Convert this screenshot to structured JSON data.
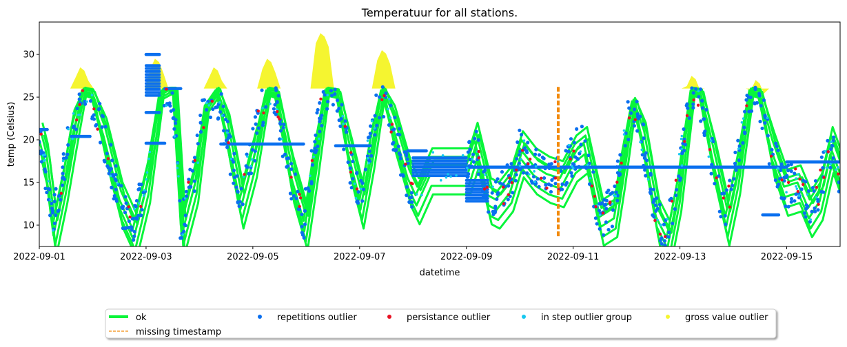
{
  "chart_data": {
    "type": "scatter",
    "title": "Temperatuur for all stations.",
    "xlabel": "datetime",
    "ylabel": "temp (Celsius)",
    "x_start": "2022-09-01",
    "x_end": "2022-09-15",
    "xlim_days": [
      0,
      15
    ],
    "ylim": [
      7.5,
      33.8
    ],
    "x_ticks": [
      {
        "day": 0,
        "label": "2022-09-01"
      },
      {
        "day": 2,
        "label": "2022-09-03"
      },
      {
        "day": 4,
        "label": "2022-09-05"
      },
      {
        "day": 6,
        "label": "2022-09-07"
      },
      {
        "day": 8,
        "label": "2022-09-09"
      },
      {
        "day": 10,
        "label": "2022-09-11"
      },
      {
        "day": 12,
        "label": "2022-09-13"
      },
      {
        "day": 14,
        "label": "2022-09-15"
      }
    ],
    "y_ticks": [
      10,
      15,
      20,
      25,
      30
    ],
    "grid": false,
    "legend_position": "bottom-center",
    "series": [
      {
        "name": "ok",
        "marker": "line",
        "color": "#08f53a",
        "description_points": [
          [
            0.0,
            20.0
          ],
          [
            0.1,
            17.5
          ],
          [
            0.25,
            10.0
          ],
          [
            0.45,
            16.0
          ],
          [
            0.6,
            21.5
          ],
          [
            0.8,
            25.8
          ],
          [
            0.95,
            25.5
          ],
          [
            1.2,
            20.5
          ],
          [
            1.5,
            13.0
          ],
          [
            1.75,
            9.5
          ],
          [
            2.0,
            16.0
          ],
          [
            2.25,
            25.5
          ],
          [
            2.4,
            26.0
          ],
          [
            2.5,
            25.8
          ],
          [
            2.65,
            10.0
          ],
          [
            2.9,
            16.0
          ],
          [
            3.1,
            24.0
          ],
          [
            3.3,
            25.8
          ],
          [
            3.5,
            21.0
          ],
          [
            3.75,
            13.0
          ],
          [
            4.0,
            19.0
          ],
          [
            4.25,
            25.8
          ],
          [
            4.4,
            25.5
          ],
          [
            4.7,
            16.0
          ],
          [
            4.95,
            10.5
          ],
          [
            5.15,
            19.0
          ],
          [
            5.35,
            25.8
          ],
          [
            5.55,
            25.5
          ],
          [
            5.8,
            18.0
          ],
          [
            6.0,
            13.0
          ],
          [
            6.2,
            20.0
          ],
          [
            6.4,
            25.8
          ],
          [
            6.6,
            22.0
          ],
          [
            6.9,
            15.5
          ],
          [
            7.05,
            13.5
          ],
          [
            7.3,
            17.0
          ],
          [
            7.5,
            17.0
          ],
          [
            8.0,
            17.0
          ],
          [
            8.15,
            20.0
          ],
          [
            8.4,
            13.5
          ],
          [
            8.55,
            13.0
          ],
          [
            8.8,
            15.0
          ],
          [
            9.0,
            19.0
          ],
          [
            9.25,
            17.0
          ],
          [
            9.5,
            16.0
          ],
          [
            9.75,
            15.5
          ],
          [
            10.0,
            18.5
          ],
          [
            10.2,
            19.5
          ],
          [
            10.5,
            11.0
          ],
          [
            10.75,
            12.0
          ],
          [
            10.9,
            18.0
          ],
          [
            11.1,
            24.5
          ],
          [
            11.3,
            20.0
          ],
          [
            11.55,
            11.0
          ],
          [
            11.75,
            8.5
          ],
          [
            11.95,
            15.0
          ],
          [
            12.2,
            25.8
          ],
          [
            12.35,
            25.5
          ],
          [
            12.6,
            18.0
          ],
          [
            12.85,
            11.0
          ],
          [
            13.05,
            17.0
          ],
          [
            13.3,
            25.8
          ],
          [
            13.45,
            25.5
          ],
          [
            13.7,
            19.0
          ],
          [
            13.95,
            14.5
          ],
          [
            14.2,
            15.0
          ],
          [
            14.4,
            12.0
          ],
          [
            14.6,
            14.0
          ],
          [
            14.8,
            19.5
          ],
          [
            15.0,
            16.0
          ]
        ]
      },
      {
        "name": "repetitions outlier",
        "marker": "dot",
        "color": "#0a6fef",
        "flat_runs": [
          {
            "from": 0.0,
            "to": 0.15,
            "value": 21.2
          },
          {
            "from": 0.6,
            "to": 0.95,
            "value": 20.4
          },
          {
            "from": 2.0,
            "to": 2.35,
            "value": 19.6
          },
          {
            "from": 2.35,
            "to": 2.65,
            "value": 26.0
          },
          {
            "from": 2.0,
            "to": 2.25,
            "value": 23.2
          },
          {
            "from": 2.0,
            "to": 2.25,
            "value": 30.0
          },
          {
            "from": 3.4,
            "to": 4.95,
            "value": 19.5
          },
          {
            "from": 5.55,
            "to": 6.2,
            "value": 19.3
          },
          {
            "from": 6.9,
            "to": 7.25,
            "value": 18.7
          },
          {
            "from": 8.0,
            "to": 14.0,
            "value": 16.8
          },
          {
            "from": 14.0,
            "to": 15.0,
            "value": 17.4
          },
          {
            "from": 13.55,
            "to": 13.85,
            "value": 11.2
          }
        ],
        "dense_blocks": [
          {
            "from": 2.0,
            "to": 2.25,
            "y_min": 25.2,
            "y_max": 29.0
          },
          {
            "from": 7.0,
            "to": 8.0,
            "y_min": 15.8,
            "y_max": 18.2
          },
          {
            "from": 8.0,
            "to": 8.4,
            "y_min": 12.8,
            "y_max": 15.5
          }
        ]
      },
      {
        "name": "persistance outlier",
        "marker": "dot",
        "color": "#e81123"
      },
      {
        "name": "in step outlier group",
        "marker": "dot",
        "color": "#17c8f0"
      },
      {
        "name": "gross value outlier",
        "marker": "dot",
        "color": "#f5f530",
        "peaks": [
          {
            "day": 0.8,
            "max": 28.5
          },
          {
            "day": 2.2,
            "max": 29.5
          },
          {
            "day": 3.3,
            "max": 28.5
          },
          {
            "day": 4.3,
            "max": 29.5
          },
          {
            "day": 5.3,
            "max": 32.5
          },
          {
            "day": 6.45,
            "max": 30.5
          },
          {
            "day": 12.25,
            "max": 27.5
          },
          {
            "day": 13.45,
            "max": 27.0
          }
        ]
      },
      {
        "name": "missing timestamp",
        "marker": "dashed-vertical",
        "color": "#f28a0a",
        "day": 9.72,
        "y_from": 8.7,
        "y_to": 26.2
      }
    ],
    "legend": {
      "row1": [
        "ok",
        "repetitions outlier",
        "persistance outlier",
        "in step outlier group",
        "gross value outlier"
      ],
      "row2": [
        "missing timestamp"
      ]
    }
  }
}
